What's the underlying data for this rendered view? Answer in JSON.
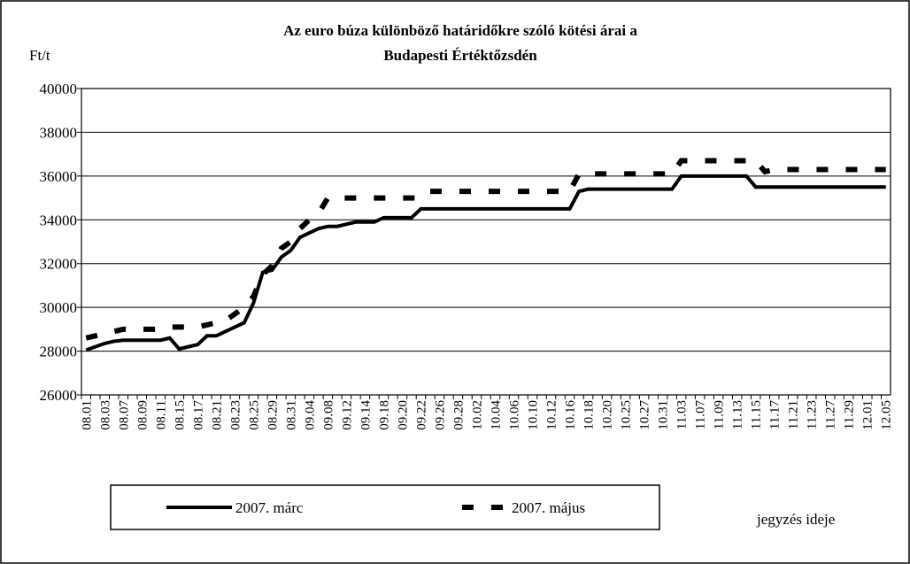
{
  "chart_data": {
    "type": "line",
    "title": [
      "Az euro búza különböző határidőkre szóló kötési árai a",
      "Budapesti Értéktőzsdén"
    ],
    "y_label": "Ft/t",
    "x_label": "jegyzés ideje",
    "categories": [
      "08.01",
      null,
      "08.03",
      null,
      "08.07",
      null,
      "08.09",
      null,
      "08.11",
      null,
      "08.15",
      null,
      "08.17",
      null,
      "08.21",
      null,
      "08.23",
      null,
      "08.25",
      null,
      "08.29",
      null,
      "08.31",
      null,
      "09.04",
      null,
      "09.08",
      null,
      "09.12",
      null,
      "09.14",
      null,
      "09.18",
      null,
      "09.20",
      null,
      "09.22",
      null,
      "09.26",
      null,
      "09.28",
      null,
      "10.02",
      null,
      "10.04",
      null,
      "10.06",
      null,
      "10.10",
      null,
      "10.12",
      null,
      "10.16",
      null,
      "10.18",
      null,
      "10.20",
      null,
      "10.25",
      null,
      "10.27",
      null,
      "10.31",
      null,
      "11.03",
      null,
      "11.07",
      null,
      "11.09",
      null,
      "11.13",
      null,
      "11.15",
      null,
      "11.17",
      null,
      "11.21",
      null,
      "11.23",
      null,
      "11.27",
      null,
      "11.29",
      null,
      "12.01",
      null,
      "12.05"
    ],
    "series": [
      {
        "name": "2007. márc",
        "color": "#000000",
        "style": "solid",
        "values": [
          28050,
          28200,
          28350,
          28450,
          28500,
          28500,
          28500,
          28500,
          28500,
          28600,
          28100,
          28200,
          28300,
          28700,
          28700,
          28900,
          29100,
          29300,
          30200,
          31600,
          31700,
          32300,
          32600,
          33200,
          33400,
          33600,
          33700,
          33700,
          33800,
          33900,
          33900,
          33900,
          34100,
          34100,
          34100,
          34100,
          34500,
          34500,
          34500,
          34500,
          34500,
          34500,
          34500,
          34500,
          34500,
          34500,
          34500,
          34500,
          34500,
          34500,
          34500,
          34500,
          34500,
          35300,
          35400,
          35400,
          35400,
          35400,
          35400,
          35400,
          35400,
          35400,
          35400,
          35400,
          36000,
          36000,
          36000,
          36000,
          36000,
          36000,
          36000,
          36000,
          35500,
          35500,
          35500,
          35500,
          35500,
          35500,
          35500,
          35500,
          35500,
          35500,
          35500,
          35500,
          35500,
          35500,
          35500
        ]
      },
      {
        "name": "2007. május",
        "color": "#000000",
        "style": "dashed",
        "values": [
          28600,
          28700,
          28800,
          28900,
          29000,
          29000,
          29000,
          29000,
          29000,
          29100,
          29100,
          29100,
          29100,
          29200,
          29300,
          29400,
          29700,
          30000,
          30500,
          31500,
          31900,
          32700,
          33000,
          33600,
          34000,
          34300,
          35000,
          35000,
          35000,
          35000,
          35000,
          35000,
          35000,
          35000,
          35000,
          35000,
          35000,
          35300,
          35300,
          35300,
          35300,
          35300,
          35300,
          35300,
          35300,
          35300,
          35300,
          35300,
          35300,
          35300,
          35300,
          35300,
          35300,
          36100,
          36100,
          36100,
          36100,
          36100,
          36100,
          36100,
          36100,
          36100,
          36100,
          36100,
          36700,
          36700,
          36700,
          36700,
          36700,
          36700,
          36700,
          36700,
          36700,
          36200,
          36300,
          36300,
          36300,
          36300,
          36300,
          36300,
          36300,
          36300,
          36300,
          36300,
          36300,
          36300,
          36300
        ]
      }
    ],
    "ylim": [
      26000,
      40000
    ],
    "yticks": [
      26000,
      28000,
      30000,
      32000,
      34000,
      36000,
      38000,
      40000
    ],
    "grid": true
  }
}
